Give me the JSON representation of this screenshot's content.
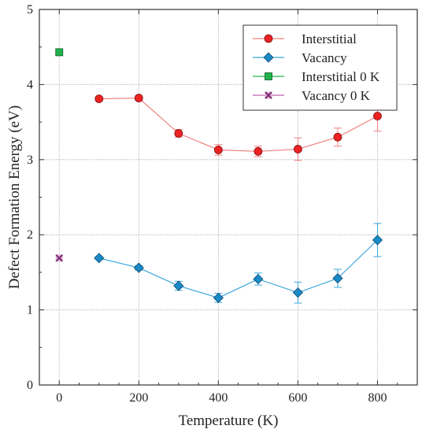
{
  "chart_data": {
    "type": "scatter",
    "xlabel": "Temperature (K)",
    "ylabel": "Defect Formation Energy (eV)",
    "xlim": [
      -50,
      900
    ],
    "ylim": [
      0,
      5
    ],
    "xticks": [
      0,
      200,
      400,
      600,
      800
    ],
    "yticks": [
      0,
      1,
      2,
      3,
      4,
      5
    ],
    "grid": true,
    "legend_position": "top-right",
    "series": [
      {
        "name": "Interstitial",
        "color": "#ee2222",
        "line_color": "#f08080",
        "marker": "circle",
        "connected": true,
        "x": [
          100,
          200,
          300,
          400,
          500,
          600,
          700,
          800
        ],
        "y": [
          3.81,
          3.82,
          3.35,
          3.13,
          3.11,
          3.14,
          3.3,
          3.58
        ],
        "error": [
          0.02,
          0.03,
          0.05,
          0.07,
          0.07,
          0.15,
          0.12,
          0.2
        ]
      },
      {
        "name": "Vacancy",
        "color": "#1b8ac7",
        "line_color": "#3aa6dc",
        "marker": "diamond",
        "connected": true,
        "x": [
          100,
          200,
          300,
          400,
          500,
          600,
          700,
          800
        ],
        "y": [
          1.69,
          1.56,
          1.32,
          1.16,
          1.41,
          1.23,
          1.42,
          1.93
        ],
        "error": [
          0.02,
          0.03,
          0.06,
          0.06,
          0.08,
          0.14,
          0.12,
          0.22
        ]
      },
      {
        "name": "Interstitial 0 K",
        "color": "#22b24c",
        "marker": "square",
        "connected": false,
        "x": [
          0
        ],
        "y": [
          4.43
        ],
        "error": [
          0
        ]
      },
      {
        "name": "Vacancy 0 K",
        "color": "#c060b0",
        "marker": "x",
        "connected": false,
        "x": [
          0
        ],
        "y": [
          1.69
        ],
        "error": [
          0
        ]
      }
    ]
  }
}
